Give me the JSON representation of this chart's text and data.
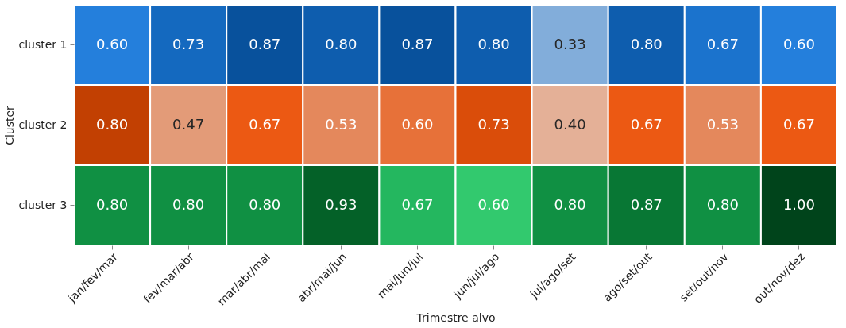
{
  "chart_data": {
    "type": "heatmap",
    "xlabel": "Trimestre alvo",
    "ylabel": "Cluster",
    "categories": [
      "jan/fev/mar",
      "fev/mar/abr",
      "mar/abr/mai",
      "abr/mai/jun",
      "mai/jun/jul",
      "jun/jul/ago",
      "jul/ago/set",
      "ago/set/out",
      "set/out/nov",
      "out/nov/dez"
    ],
    "y_categories": [
      "cluster 1",
      "cluster 2",
      "cluster 3"
    ],
    "colors": [
      "#08519c",
      "#c24002",
      "#00441b"
    ],
    "cells": [
      [
        0.6,
        0.73,
        0.87,
        0.8,
        0.87,
        0.8,
        0.33,
        0.8,
        0.67,
        0.6
      ],
      [
        0.8,
        0.47,
        0.67,
        0.53,
        0.6,
        0.73,
        0.4,
        0.67,
        0.53,
        0.67
      ],
      [
        0.8,
        0.8,
        0.8,
        0.93,
        0.67,
        0.6,
        0.8,
        0.87,
        0.8,
        1.0
      ]
    ],
    "cell_labels": [
      [
        "0.60",
        "0.73",
        "0.87",
        "0.80",
        "0.87",
        "0.80",
        "0.33",
        "0.80",
        "0.67",
        "0.60"
      ],
      [
        "0.80",
        "0.47",
        "0.67",
        "0.53",
        "0.60",
        "0.73",
        "0.40",
        "0.67",
        "0.53",
        "0.67"
      ],
      [
        "0.80",
        "0.80",
        "0.80",
        "0.93",
        "0.67",
        "0.60",
        "0.80",
        "0.87",
        "0.80",
        "1.00"
      ]
    ]
  }
}
